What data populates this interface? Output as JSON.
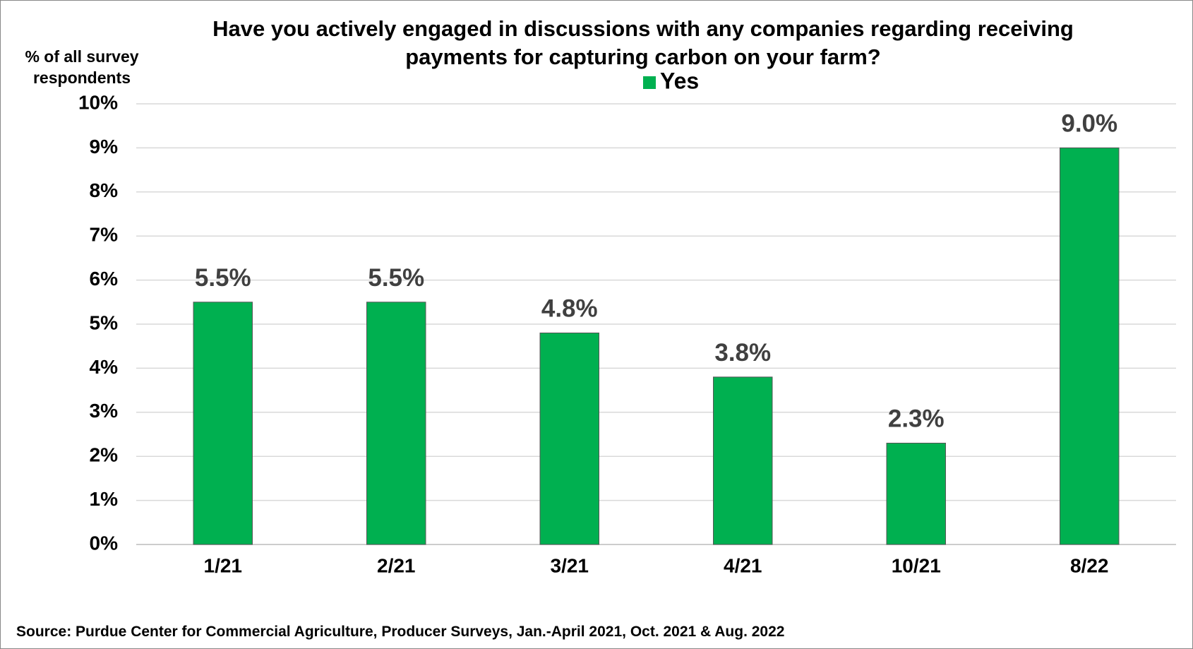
{
  "chart_data": {
    "type": "bar",
    "title": "Have you actively engaged in discussions with any companies regarding receiving payments for capturing carbon on your farm?",
    "y_label": "% of all survey respondents",
    "source": "Source: Purdue Center for Commercial Agriculture, Producer Surveys, Jan.-April 2021, Oct. 2021 & Aug. 2022",
    "categories": [
      "1/21",
      "2/21",
      "3/21",
      "4/21",
      "10/21",
      "8/22"
    ],
    "series": [
      {
        "name": "Yes",
        "color": "#00b050",
        "values": [
          5.5,
          5.5,
          4.8,
          3.8,
          2.3,
          9.0
        ],
        "value_labels": [
          "5.5%",
          "5.5%",
          "4.8%",
          "3.8%",
          "2.3%",
          "9.0%"
        ]
      }
    ],
    "ylim": [
      0,
      10
    ],
    "yticks": [
      {
        "value": 0,
        "label": "0%"
      },
      {
        "value": 1,
        "label": "1%"
      },
      {
        "value": 2,
        "label": "2%"
      },
      {
        "value": 3,
        "label": "3%"
      },
      {
        "value": 4,
        "label": "4%"
      },
      {
        "value": 5,
        "label": "5%"
      },
      {
        "value": 6,
        "label": "6%"
      },
      {
        "value": 7,
        "label": "7%"
      },
      {
        "value": 8,
        "label": "8%"
      },
      {
        "value": 9,
        "label": "9%"
      },
      {
        "value": 10,
        "label": "10%"
      }
    ],
    "grid": true,
    "legend": "top"
  }
}
